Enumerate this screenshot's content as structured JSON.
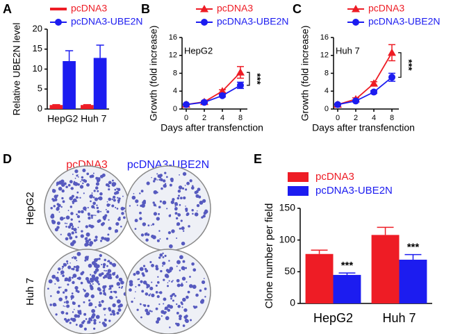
{
  "panel_labels": [
    "A",
    "B",
    "C",
    "D",
    "E"
  ],
  "plates": {
    "columns": [
      "pcDNA3",
      "pcDNA3-UBE2N"
    ],
    "rows": [
      "HepG2",
      "Huh 7"
    ]
  },
  "chart_data": [
    {
      "type": "bar",
      "ylabel": "Relative UBE2N level",
      "categories": [
        "HepG2",
        "Huh 7"
      ],
      "series": [
        {
          "name": "pcDNA3",
          "color": "#ee1c25",
          "values": [
            1,
            1
          ],
          "errors": [
            0.1,
            0.1
          ]
        },
        {
          "name": "pcDNA3-UBE2N",
          "color": "#1c1cf0",
          "values": [
            12,
            12.8
          ],
          "errors": [
            2.6,
            3.2
          ]
        }
      ],
      "ylim": [
        0,
        20
      ],
      "yticks": [
        0,
        5,
        10,
        15,
        20
      ]
    },
    {
      "type": "line",
      "ylabel": "Growth (fold increase)",
      "xlabel": "Days after transfenction",
      "annotation": "HepG2",
      "significance": "***",
      "categories": [
        "0",
        "2",
        "4",
        "8"
      ],
      "series": [
        {
          "name": "pcDNA3",
          "color": "#ee1c25",
          "marker": "triangle",
          "values": [
            1,
            1.6,
            4.0,
            8.2
          ],
          "errors": [
            0.1,
            0.2,
            0.3,
            1.3
          ]
        },
        {
          "name": "pcDNA3-UBE2N",
          "color": "#1c1cf0",
          "marker": "circle",
          "values": [
            1,
            1.5,
            3.0,
            5.3
          ],
          "errors": [
            0.1,
            0.2,
            0.3,
            0.7
          ]
        }
      ],
      "ylim": [
        0,
        16
      ],
      "yticks": [
        0,
        4,
        8,
        12,
        16
      ]
    },
    {
      "type": "line",
      "ylabel": "Growth (fold increase)",
      "xlabel": "Days after transfenction",
      "annotation": "Huh 7",
      "significance": "***",
      "categories": [
        "0",
        "2",
        "4",
        "8"
      ],
      "series": [
        {
          "name": "pcDNA3",
          "color": "#ee1c25",
          "marker": "triangle",
          "values": [
            1,
            2.2,
            5.7,
            12.6
          ],
          "errors": [
            0.1,
            0.3,
            0.4,
            1.8
          ]
        },
        {
          "name": "pcDNA3-UBE2N",
          "color": "#1c1cf0",
          "marker": "circle",
          "values": [
            1,
            1.8,
            3.8,
            7.1
          ],
          "errors": [
            0.1,
            0.2,
            0.3,
            0.9
          ]
        }
      ],
      "ylim": [
        0,
        16
      ],
      "yticks": [
        0,
        4,
        8,
        12,
        16
      ]
    },
    {
      "type": "bar",
      "ylabel": "Clone number per field",
      "categories": [
        "HepG2",
        "Huh 7"
      ],
      "significance": [
        "***",
        "***"
      ],
      "series": [
        {
          "name": "pcDNA3",
          "color": "#ee1c25",
          "values": [
            78,
            108
          ],
          "errors": [
            6,
            12
          ]
        },
        {
          "name": "pcDNA3-UBE2N",
          "color": "#1c1cf0",
          "values": [
            45,
            69
          ],
          "errors": [
            3,
            8
          ]
        }
      ],
      "ylim": [
        0,
        150
      ],
      "yticks": [
        0,
        50,
        100,
        150
      ]
    }
  ]
}
